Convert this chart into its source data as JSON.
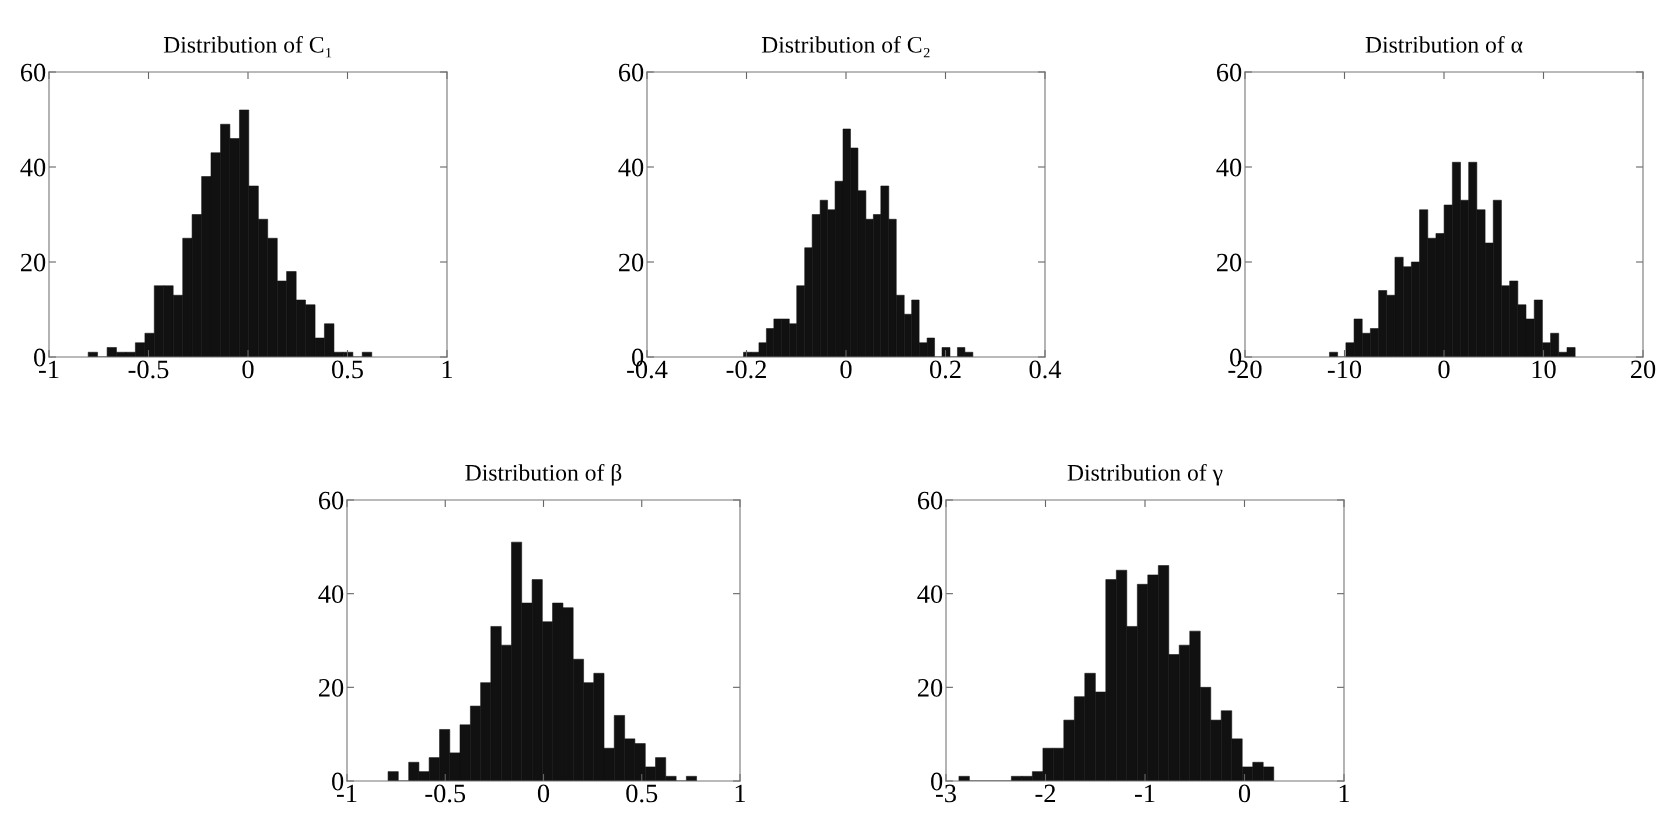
{
  "chart_data": [
    {
      "type": "histogram",
      "title": "Distribution of C₁",
      "color": "#111111",
      "bins": [
        -0.803,
        -0.756,
        -0.708,
        -0.661,
        -0.613,
        -0.566,
        -0.518,
        -0.471,
        -0.423,
        -0.376,
        -0.328,
        -0.281,
        -0.233,
        -0.186,
        -0.138,
        -0.091,
        -0.043,
        0.004,
        0.052,
        0.099,
        0.147,
        0.194,
        0.242,
        0.289,
        0.337,
        0.384,
        0.432,
        0.479,
        0.527,
        0.574,
        0.622
      ],
      "values": [
        1,
        0,
        2,
        1,
        1,
        3,
        5,
        15,
        15,
        13,
        25,
        30,
        38,
        43,
        49,
        46,
        52,
        36,
        29,
        25,
        16,
        18,
        12,
        11,
        4,
        7,
        1,
        1,
        0,
        1
      ],
      "xlim": [
        -1,
        1
      ],
      "xticks": [
        -1,
        -0.5,
        0,
        0.5,
        1
      ],
      "ylim": [
        0,
        60
      ],
      "yticks": [
        0,
        20,
        40,
        60
      ]
    },
    {
      "type": "histogram",
      "title": "Distribution of C₂",
      "color": "#111111",
      "bins": [
        -0.206,
        -0.191,
        -0.175,
        -0.16,
        -0.145,
        -0.129,
        -0.114,
        -0.099,
        -0.083,
        -0.068,
        -0.052,
        -0.037,
        -0.022,
        -0.006,
        0.009,
        0.024,
        0.04,
        0.055,
        0.07,
        0.086,
        0.101,
        0.117,
        0.132,
        0.147,
        0.163,
        0.178,
        0.193,
        0.209,
        0.224,
        0.239,
        0.255
      ],
      "values": [
        1,
        1,
        3,
        6,
        8,
        8,
        7,
        15,
        23,
        30,
        33,
        31,
        37,
        48,
        44,
        35,
        29,
        30,
        36,
        29,
        13,
        9,
        12,
        3,
        4,
        0,
        2,
        0,
        2,
        1
      ],
      "xlim": [
        -0.4,
        0.4
      ],
      "xticks": [
        -0.4,
        -0.2,
        0,
        0.2,
        0.4
      ],
      "ylim": [
        0,
        60
      ],
      "yticks": [
        0,
        20,
        40,
        60
      ]
    },
    {
      "type": "histogram",
      "title": "Distribution of α",
      "color": "#111111",
      "bins": [
        -11.51,
        -10.69,
        -9.86,
        -9.04,
        -8.22,
        -7.4,
        -6.57,
        -5.75,
        -4.93,
        -4.1,
        -3.28,
        -2.46,
        -1.63,
        -0.81,
        0.01,
        0.84,
        1.66,
        2.48,
        3.3,
        4.13,
        4.95,
        5.77,
        6.6,
        7.42,
        8.24,
        9.07,
        9.89,
        10.71,
        11.53,
        12.36,
        13.18
      ],
      "values": [
        1,
        0,
        3,
        8,
        5,
        6,
        14,
        13,
        21,
        19,
        20,
        31,
        25,
        26,
        32,
        41,
        33,
        41,
        31,
        24,
        33,
        15,
        16,
        11,
        8,
        12,
        3,
        5,
        1,
        2
      ],
      "xlim": [
        -20,
        20
      ],
      "xticks": [
        -20,
        -10,
        0,
        10,
        20
      ],
      "ylim": [
        0,
        60
      ],
      "yticks": [
        0,
        20,
        40,
        60
      ]
    },
    {
      "type": "histogram",
      "title": "Distribution of β",
      "color": "#111111",
      "bins": [
        -0.791,
        -0.739,
        -0.686,
        -0.634,
        -0.582,
        -0.529,
        -0.477,
        -0.425,
        -0.372,
        -0.32,
        -0.268,
        -0.215,
        -0.163,
        -0.111,
        -0.058,
        -0.006,
        0.046,
        0.099,
        0.151,
        0.204,
        0.256,
        0.308,
        0.36,
        0.413,
        0.465,
        0.518,
        0.57,
        0.622,
        0.675,
        0.727,
        0.779
      ],
      "values": [
        2,
        0,
        4,
        2,
        5,
        11,
        6,
        12,
        16,
        21,
        33,
        29,
        51,
        38,
        43,
        34,
        38,
        37,
        26,
        21,
        23,
        7,
        14,
        9,
        8,
        3,
        5,
        1,
        0,
        1
      ],
      "xlim": [
        -1,
        1
      ],
      "xticks": [
        -1,
        -0.5,
        0,
        0.5,
        1
      ],
      "ylim": [
        0,
        60
      ],
      "yticks": [
        0,
        20,
        40,
        60
      ]
    },
    {
      "type": "histogram",
      "title": "Distribution of γ",
      "color": "#111111",
      "bins": [
        -2.87,
        -2.765,
        -2.659,
        -2.554,
        -2.448,
        -2.343,
        -2.237,
        -2.132,
        -2.026,
        -1.921,
        -1.816,
        -1.71,
        -1.605,
        -1.499,
        -1.394,
        -1.288,
        -1.183,
        -1.077,
        -0.972,
        -0.866,
        -0.761,
        -0.656,
        -0.55,
        -0.445,
        -0.339,
        -0.234,
        -0.128,
        -0.023,
        0.083,
        0.188,
        0.294
      ],
      "values": [
        1,
        0,
        0,
        0,
        0,
        1,
        1,
        2,
        7,
        7,
        13,
        18,
        23,
        19,
        43,
        45,
        33,
        42,
        44,
        46,
        27,
        29,
        32,
        20,
        13,
        15,
        9,
        3,
        4,
        3
      ],
      "xlim": [
        -3,
        1
      ],
      "xticks": [
        -3,
        -2,
        -1,
        0,
        1
      ],
      "ylim": [
        0,
        60
      ],
      "yticks": [
        0,
        20,
        40,
        60
      ]
    }
  ]
}
